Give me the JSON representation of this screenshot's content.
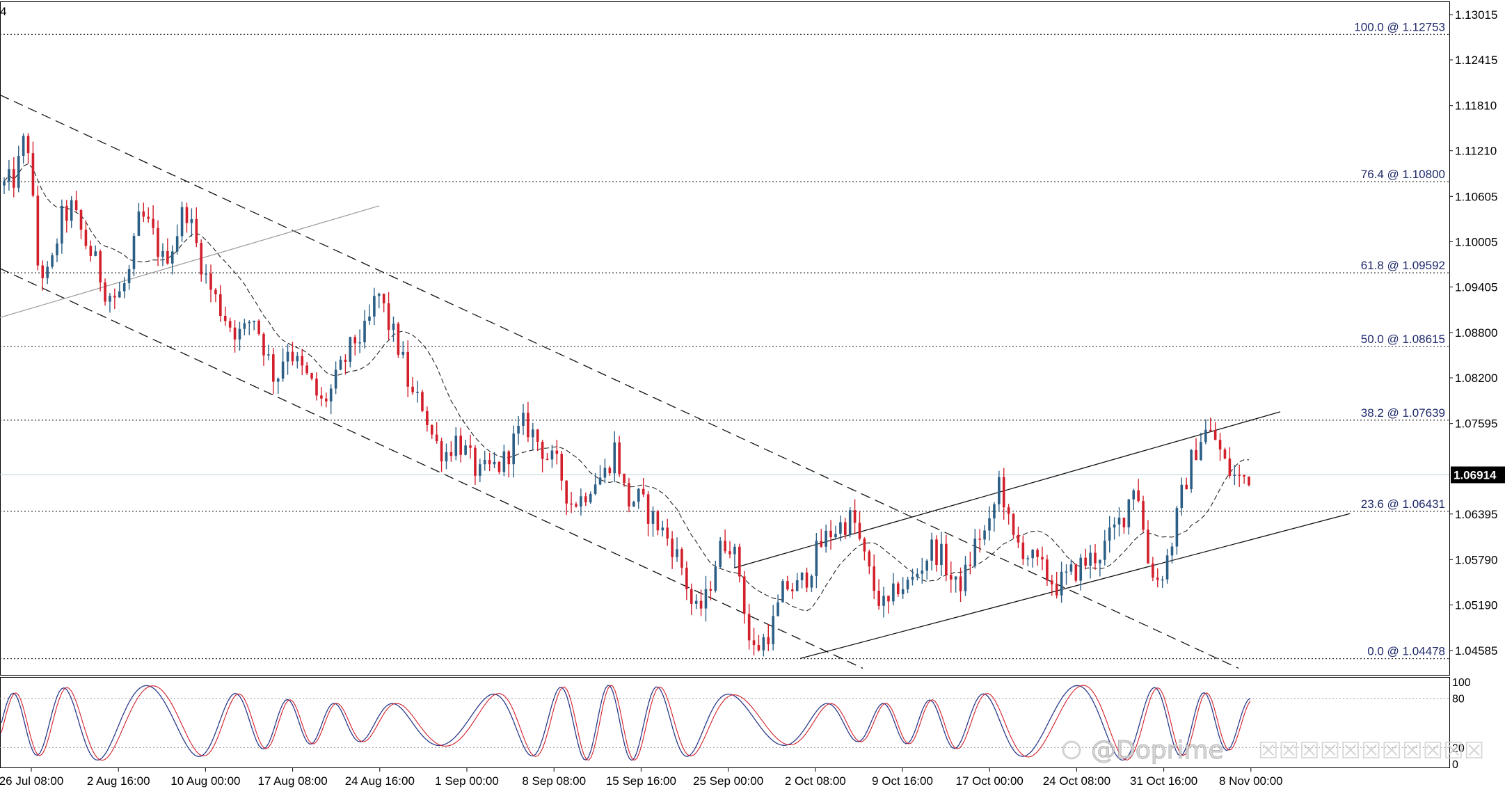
{
  "chart_data": {
    "type": "candlestick",
    "corner_label": "4",
    "y_axis_ticks": [
      "1.13015",
      "1.12415",
      "1.11810",
      "1.11210",
      "1.10605",
      "1.10005",
      "1.09405",
      "1.08800",
      "1.08200",
      "1.07595",
      "1.06395",
      "1.05790",
      "1.05190",
      "1.04585"
    ],
    "ylim": [
      1.0438,
      1.132
    ],
    "current_price": "1.06914",
    "current_price_value": 1.06914,
    "x_axis_ticks": [
      "26 Jul 08:00",
      "2 Aug 16:00",
      "10 Aug 00:00",
      "17 Aug 08:00",
      "24 Aug 16:00",
      "1 Sep 00:00",
      "8 Sep 08:00",
      "15 Sep 16:00",
      "25 Sep 00:00",
      "2 Oct 08:00",
      "9 Oct 16:00",
      "17 Oct 00:00",
      "24 Oct 08:00",
      "31 Oct 16:00",
      "8 Nov 00:00"
    ],
    "fibonacci_levels": [
      {
        "label": "100.0 @ 1.12753",
        "price": 1.12753
      },
      {
        "label": "76.4 @ 1.10800",
        "price": 1.108
      },
      {
        "label": "61.8 @ 1.09592",
        "price": 1.09592
      },
      {
        "label": "50.0 @ 1.08615",
        "price": 1.08615
      },
      {
        "label": "38.2 @ 1.07639",
        "price": 1.07639
      },
      {
        "label": "23.6 @ 1.06431",
        "price": 1.06431
      },
      {
        "label": "0.0 @ 1.04478",
        "price": 1.04478
      }
    ],
    "price_path": [
      1.1075,
      1.1085,
      1.115,
      1.0965,
      1.0952,
      1.103,
      1.1045,
      1.1005,
      1.0975,
      1.0935,
      1.0925,
      1.0955,
      1.1035,
      1.1015,
      1.0975,
      1.1,
      1.105,
      1.0995,
      1.0945,
      1.0915,
      1.089,
      1.0875,
      1.0905,
      1.086,
      1.0815,
      1.0865,
      1.0835,
      1.0815,
      1.0785,
      1.0805,
      1.084,
      1.087,
      1.088,
      1.0935,
      1.089,
      1.0855,
      1.0795,
      1.0785,
      1.0735,
      1.072,
      1.074,
      1.0715,
      1.069,
      1.07,
      1.0705,
      1.0735,
      1.076,
      1.074,
      1.0715,
      1.07,
      1.0655,
      1.066,
      1.0685,
      1.069,
      1.073,
      1.0655,
      1.066,
      1.064,
      1.062,
      1.06,
      1.0565,
      1.0505,
      1.0525,
      1.0585,
      1.061,
      1.056,
      1.0455,
      1.047,
      1.0495,
      1.0545,
      1.054,
      1.056,
      1.0595,
      1.0615,
      1.0625,
      1.0635,
      1.058,
      1.0535,
      1.051,
      1.0545,
      1.0545,
      1.057,
      1.0595,
      1.058,
      1.054,
      1.056,
      1.061,
      1.0615,
      1.069,
      1.0605,
      1.0595,
      1.0575,
      1.056,
      1.0545,
      1.0555,
      1.057,
      1.058,
      1.059,
      1.0615,
      1.064,
      1.069,
      1.058,
      1.055,
      1.059,
      1.066,
      1.0715,
      1.075,
      1.074,
      1.07,
      1.0685,
      1.0691
    ],
    "oscillator": {
      "type": "stochastic",
      "ticks": [
        "100",
        "80",
        "20",
        "0"
      ],
      "levels": [
        80,
        20
      ]
    }
  },
  "watermark": {
    "text": "@Doprime",
    "suffix": "☒☒☒☒☒☒☒☒☒☒☒"
  }
}
